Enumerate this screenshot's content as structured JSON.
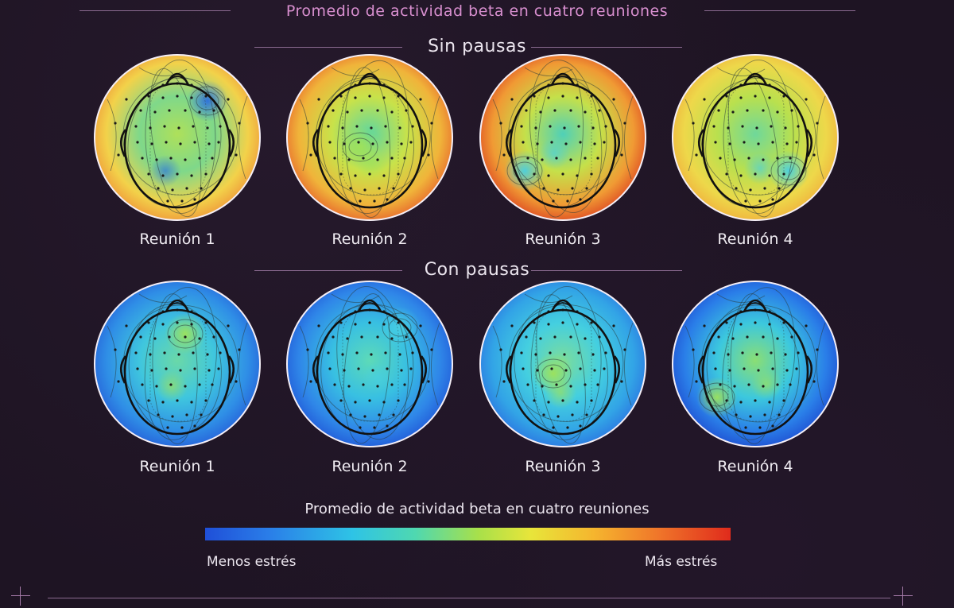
{
  "title": "Promedio de actividad beta en cuatro reuniones",
  "sections": [
    {
      "label": "Sin pausas",
      "maps": [
        {
          "caption": "Reunión 1",
          "palette": "yellow-green",
          "spot": "blue"
        },
        {
          "caption": "Reunión 2",
          "palette": "orange-red",
          "spot": "green"
        },
        {
          "caption": "Reunión 3",
          "palette": "red-orange",
          "spot": "cyan"
        },
        {
          "caption": "Reunión 4",
          "palette": "yellow",
          "spot": "cyan"
        }
      ]
    },
    {
      "label": "Con pausas",
      "maps": [
        {
          "caption": "Reunión 1",
          "palette": "cyan-blue",
          "spot": "green"
        },
        {
          "caption": "Reunión 2",
          "palette": "blue",
          "spot": "cyan"
        },
        {
          "caption": "Reunión 3",
          "palette": "cyan",
          "spot": "green"
        },
        {
          "caption": "Reunión 4",
          "palette": "deep-blue",
          "spot": "green"
        }
      ]
    }
  ],
  "legend": {
    "title": "Promedio de actividad beta en cuatro reuniones",
    "low_label": "Menos estrés",
    "high_label": "Más estrés",
    "colors": [
      "#1f4fd8",
      "#2ec3e6",
      "#a8e04a",
      "#e8e53a",
      "#f0772a",
      "#e02b1c"
    ]
  },
  "colors": {
    "background": "#1e1423",
    "title": "#d88fcf",
    "text": "#ece6ef"
  }
}
